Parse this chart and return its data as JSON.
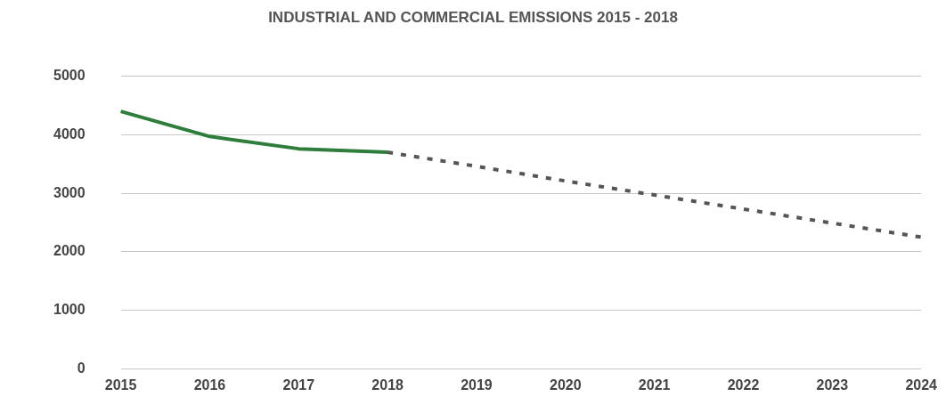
{
  "chart_data": {
    "type": "line",
    "title": "INDUSTRIAL AND COMMERCIAL EMISSIONS 2015 - 2018",
    "categories": [
      "2015",
      "2016",
      "2017",
      "2018",
      "2019",
      "2020",
      "2021",
      "2022",
      "2023",
      "2024"
    ],
    "series": [
      {
        "color": "#2e7d3a",
        "line_style": "solid",
        "values": [
          4400,
          3970,
          3760,
          3700,
          null,
          null,
          null,
          null,
          null,
          null
        ]
      },
      {
        "color": "#555555",
        "line_style": "dotted",
        "values": [
          null,
          null,
          null,
          3700,
          3460,
          3210,
          2970,
          2730,
          2490,
          2250
        ]
      }
    ],
    "ylim": [
      0,
      5000
    ],
    "yticks": [
      0,
      1000,
      2000,
      3000,
      4000,
      5000
    ],
    "grid": "y",
    "legend": false,
    "marker": "none"
  }
}
